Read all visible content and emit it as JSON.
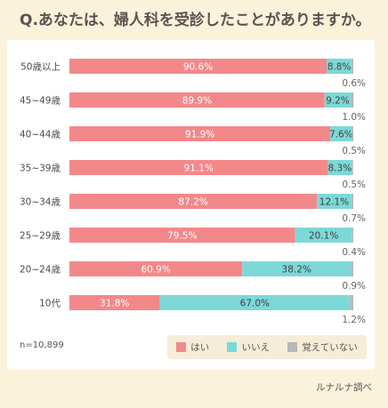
{
  "title": "Q.あなたは、婦人科を受診したことがありますか。",
  "note": "n=10,899",
  "credit": "ルナルナ調べ",
  "colors": {
    "yes": "#f3888a",
    "no": "#7dd8d8",
    "unsure": "#b8b8b8"
  },
  "chart_data": {
    "type": "bar",
    "orientation": "horizontal",
    "stacked": true,
    "percent_stacked": true,
    "categories": [
      "50歳以上",
      "45~49歳",
      "40~44歳",
      "35~39歳",
      "30~34歳",
      "25~29歳",
      "20~24歳",
      "10代"
    ],
    "series": [
      {
        "name": "はい",
        "values": [
          90.6,
          89.9,
          91.9,
          91.1,
          87.2,
          79.5,
          60.9,
          31.8
        ]
      },
      {
        "name": "いいえ",
        "values": [
          8.8,
          9.2,
          7.6,
          8.3,
          12.1,
          20.1,
          38.2,
          67.0
        ]
      },
      {
        "name": "覚えていない",
        "values": [
          0.6,
          1.0,
          0.5,
          0.5,
          0.7,
          0.4,
          0.9,
          1.2
        ]
      }
    ],
    "labels": {
      "yes": [
        "90.6%",
        "89.9%",
        "91.9%",
        "91.1%",
        "87.2%",
        "79.5%",
        "60.9%",
        "31.8%"
      ],
      "no": [
        "8.8%",
        "9.2%",
        "7.6%",
        "8.3%",
        "12.1%",
        "20.1%",
        "38.2%",
        "67.0%"
      ],
      "unsure": [
        "0.6%",
        "1.0%",
        "0.5%",
        "0.5%",
        "0.7%",
        "0.4%",
        "0.9%",
        "1.2%"
      ]
    },
    "xlim": [
      0,
      100
    ],
    "legend": "bottom-right",
    "grid": false
  }
}
